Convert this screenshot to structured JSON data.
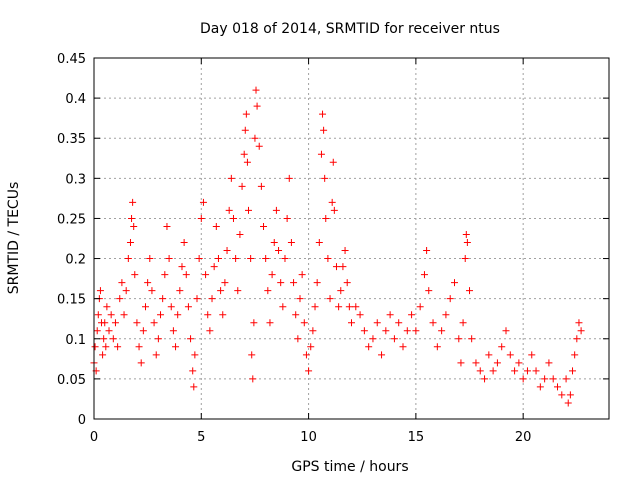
{
  "chart_data": {
    "type": "scatter",
    "title": "Day 018 of 2014, SRMTID for receiver ntus",
    "xlabel": "GPS time / hours",
    "ylabel": "SRMTID / TECUs",
    "xlim": [
      0,
      24
    ],
    "ylim": [
      0,
      0.45
    ],
    "xticks": [
      0,
      5,
      10,
      15,
      20
    ],
    "xtick_labels": [
      "0",
      "5",
      "10",
      "15",
      "20"
    ],
    "yticks": [
      0,
      0.05,
      0.1,
      0.15,
      0.2,
      0.25,
      0.3,
      0.35,
      0.4,
      0.45
    ],
    "ytick_labels": [
      "0",
      "0.05",
      "0.1",
      "0.15",
      "0.2",
      "0.25",
      "0.3",
      "0.35",
      "0.4",
      "0.45"
    ],
    "grid": true,
    "marker": "+",
    "color": "#ff0000",
    "series": [
      {
        "name": "SRMTID",
        "points": [
          [
            0.0,
            0.07
          ],
          [
            0.05,
            0.09
          ],
          [
            0.1,
            0.06
          ],
          [
            0.15,
            0.11
          ],
          [
            0.2,
            0.13
          ],
          [
            0.25,
            0.15
          ],
          [
            0.3,
            0.16
          ],
          [
            0.35,
            0.12
          ],
          [
            0.4,
            0.08
          ],
          [
            0.45,
            0.1
          ],
          [
            0.5,
            0.12
          ],
          [
            0.55,
            0.09
          ],
          [
            0.6,
            0.14
          ],
          [
            0.7,
            0.11
          ],
          [
            0.8,
            0.13
          ],
          [
            0.9,
            0.1
          ],
          [
            1.0,
            0.12
          ],
          [
            1.1,
            0.09
          ],
          [
            1.2,
            0.15
          ],
          [
            1.3,
            0.17
          ],
          [
            1.4,
            0.13
          ],
          [
            1.5,
            0.16
          ],
          [
            1.6,
            0.2
          ],
          [
            1.7,
            0.22
          ],
          [
            1.75,
            0.25
          ],
          [
            1.8,
            0.27
          ],
          [
            1.85,
            0.24
          ],
          [
            1.9,
            0.18
          ],
          [
            2.0,
            0.12
          ],
          [
            2.1,
            0.09
          ],
          [
            2.2,
            0.07
          ],
          [
            2.3,
            0.11
          ],
          [
            2.4,
            0.14
          ],
          [
            2.5,
            0.17
          ],
          [
            2.6,
            0.2
          ],
          [
            2.7,
            0.16
          ],
          [
            2.8,
            0.12
          ],
          [
            2.9,
            0.08
          ],
          [
            3.0,
            0.1
          ],
          [
            3.1,
            0.13
          ],
          [
            3.2,
            0.15
          ],
          [
            3.3,
            0.18
          ],
          [
            3.4,
            0.24
          ],
          [
            3.5,
            0.2
          ],
          [
            3.6,
            0.14
          ],
          [
            3.7,
            0.11
          ],
          [
            3.8,
            0.09
          ],
          [
            3.9,
            0.13
          ],
          [
            4.0,
            0.16
          ],
          [
            4.1,
            0.19
          ],
          [
            4.2,
            0.22
          ],
          [
            4.3,
            0.18
          ],
          [
            4.4,
            0.14
          ],
          [
            4.5,
            0.1
          ],
          [
            4.6,
            0.06
          ],
          [
            4.65,
            0.04
          ],
          [
            4.7,
            0.08
          ],
          [
            4.8,
            0.15
          ],
          [
            4.9,
            0.2
          ],
          [
            5.0,
            0.25
          ],
          [
            5.1,
            0.27
          ],
          [
            5.2,
            0.18
          ],
          [
            5.3,
            0.13
          ],
          [
            5.4,
            0.11
          ],
          [
            5.5,
            0.15
          ],
          [
            5.6,
            0.19
          ],
          [
            5.7,
            0.24
          ],
          [
            5.8,
            0.2
          ],
          [
            5.9,
            0.16
          ],
          [
            6.0,
            0.13
          ],
          [
            6.1,
            0.17
          ],
          [
            6.2,
            0.21
          ],
          [
            6.3,
            0.26
          ],
          [
            6.4,
            0.3
          ],
          [
            6.5,
            0.25
          ],
          [
            6.6,
            0.2
          ],
          [
            6.7,
            0.16
          ],
          [
            6.8,
            0.23
          ],
          [
            6.9,
            0.29
          ],
          [
            7.0,
            0.33
          ],
          [
            7.05,
            0.36
          ],
          [
            7.1,
            0.38
          ],
          [
            7.15,
            0.32
          ],
          [
            7.2,
            0.26
          ],
          [
            7.3,
            0.2
          ],
          [
            7.35,
            0.08
          ],
          [
            7.4,
            0.05
          ],
          [
            7.45,
            0.12
          ],
          [
            7.5,
            0.35
          ],
          [
            7.55,
            0.41
          ],
          [
            7.6,
            0.39
          ],
          [
            7.7,
            0.34
          ],
          [
            7.8,
            0.29
          ],
          [
            7.9,
            0.24
          ],
          [
            8.0,
            0.2
          ],
          [
            8.1,
            0.16
          ],
          [
            8.2,
            0.12
          ],
          [
            8.3,
            0.18
          ],
          [
            8.4,
            0.22
          ],
          [
            8.5,
            0.26
          ],
          [
            8.6,
            0.21
          ],
          [
            8.7,
            0.17
          ],
          [
            8.8,
            0.14
          ],
          [
            8.9,
            0.2
          ],
          [
            9.0,
            0.25
          ],
          [
            9.1,
            0.3
          ],
          [
            9.2,
            0.22
          ],
          [
            9.3,
            0.17
          ],
          [
            9.4,
            0.13
          ],
          [
            9.5,
            0.1
          ],
          [
            9.6,
            0.15
          ],
          [
            9.7,
            0.18
          ],
          [
            9.8,
            0.12
          ],
          [
            9.9,
            0.08
          ],
          [
            10.0,
            0.06
          ],
          [
            10.1,
            0.09
          ],
          [
            10.2,
            0.11
          ],
          [
            10.3,
            0.14
          ],
          [
            10.4,
            0.17
          ],
          [
            10.5,
            0.22
          ],
          [
            10.6,
            0.33
          ],
          [
            10.65,
            0.38
          ],
          [
            10.7,
            0.36
          ],
          [
            10.75,
            0.3
          ],
          [
            10.8,
            0.25
          ],
          [
            10.9,
            0.2
          ],
          [
            11.0,
            0.15
          ],
          [
            11.1,
            0.27
          ],
          [
            11.15,
            0.32
          ],
          [
            11.2,
            0.26
          ],
          [
            11.3,
            0.19
          ],
          [
            11.4,
            0.14
          ],
          [
            11.5,
            0.16
          ],
          [
            11.6,
            0.19
          ],
          [
            11.7,
            0.21
          ],
          [
            11.8,
            0.17
          ],
          [
            11.9,
            0.14
          ],
          [
            12.0,
            0.12
          ],
          [
            12.2,
            0.14
          ],
          [
            12.4,
            0.13
          ],
          [
            12.6,
            0.11
          ],
          [
            12.8,
            0.09
          ],
          [
            13.0,
            0.1
          ],
          [
            13.2,
            0.12
          ],
          [
            13.4,
            0.08
          ],
          [
            13.6,
            0.11
          ],
          [
            13.8,
            0.13
          ],
          [
            14.0,
            0.1
          ],
          [
            14.2,
            0.12
          ],
          [
            14.4,
            0.09
          ],
          [
            14.6,
            0.11
          ],
          [
            14.8,
            0.13
          ],
          [
            15.0,
            0.11
          ],
          [
            15.2,
            0.14
          ],
          [
            15.4,
            0.18
          ],
          [
            15.5,
            0.21
          ],
          [
            15.6,
            0.16
          ],
          [
            15.8,
            0.12
          ],
          [
            16.0,
            0.09
          ],
          [
            16.2,
            0.11
          ],
          [
            16.4,
            0.13
          ],
          [
            16.6,
            0.15
          ],
          [
            16.8,
            0.17
          ],
          [
            17.0,
            0.1
          ],
          [
            17.1,
            0.07
          ],
          [
            17.2,
            0.12
          ],
          [
            17.3,
            0.2
          ],
          [
            17.35,
            0.23
          ],
          [
            17.4,
            0.22
          ],
          [
            17.5,
            0.16
          ],
          [
            17.6,
            0.1
          ],
          [
            17.8,
            0.07
          ],
          [
            18.0,
            0.06
          ],
          [
            18.2,
            0.05
          ],
          [
            18.4,
            0.08
          ],
          [
            18.6,
            0.06
          ],
          [
            18.8,
            0.07
          ],
          [
            19.0,
            0.09
          ],
          [
            19.2,
            0.11
          ],
          [
            19.4,
            0.08
          ],
          [
            19.6,
            0.06
          ],
          [
            19.8,
            0.07
          ],
          [
            20.0,
            0.05
          ],
          [
            20.2,
            0.06
          ],
          [
            20.4,
            0.08
          ],
          [
            20.6,
            0.06
          ],
          [
            20.8,
            0.04
          ],
          [
            21.0,
            0.05
          ],
          [
            21.2,
            0.07
          ],
          [
            21.4,
            0.05
          ],
          [
            21.6,
            0.04
          ],
          [
            21.8,
            0.03
          ],
          [
            22.0,
            0.05
          ],
          [
            22.1,
            0.02
          ],
          [
            22.2,
            0.03
          ],
          [
            22.3,
            0.06
          ],
          [
            22.4,
            0.08
          ],
          [
            22.5,
            0.1
          ],
          [
            22.6,
            0.12
          ],
          [
            22.7,
            0.11
          ]
        ]
      }
    ]
  }
}
